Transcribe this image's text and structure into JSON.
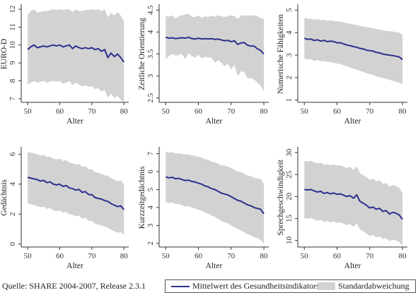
{
  "chart_data": [
    {
      "type": "line",
      "xlabel": "Alter",
      "ylabel": "EURO-D",
      "xlim": [
        48,
        81.5
      ],
      "ylim": [
        6.8,
        12.2
      ],
      "xticks": [
        50,
        60,
        70,
        80
      ],
      "yticks": [
        7,
        8,
        9,
        10,
        11,
        12
      ],
      "x": [
        50,
        51,
        52,
        53,
        54,
        55,
        56,
        57,
        58,
        59,
        60,
        61,
        62,
        63,
        64,
        65,
        66,
        67,
        68,
        69,
        70,
        71,
        72,
        73,
        74,
        75,
        76,
        77,
        78,
        79,
        80
      ],
      "series": [
        {
          "name": "Mittelwert des Gesundheitsindikators",
          "values": [
            9.75,
            9.9,
            10.0,
            9.85,
            9.9,
            9.95,
            9.9,
            9.95,
            10.0,
            9.95,
            10.0,
            9.9,
            9.95,
            10.0,
            9.8,
            9.95,
            9.85,
            9.8,
            9.85,
            9.8,
            9.85,
            9.75,
            9.8,
            9.65,
            9.75,
            9.3,
            9.55,
            9.35,
            9.5,
            9.3,
            9.05
          ]
        },
        {
          "name": "Standardabweichung",
          "lower": [
            7.8,
            7.9,
            8.0,
            7.9,
            7.95,
            8.0,
            7.9,
            7.95,
            8.0,
            7.95,
            8.0,
            7.85,
            7.9,
            8.0,
            7.75,
            7.9,
            7.8,
            7.7,
            7.75,
            7.65,
            7.7,
            7.55,
            7.6,
            7.4,
            7.5,
            7.05,
            7.3,
            7.05,
            7.15,
            6.95,
            6.8
          ],
          "upper": [
            11.7,
            11.9,
            12.0,
            11.8,
            11.85,
            11.9,
            11.9,
            11.95,
            12.0,
            11.95,
            12.0,
            11.95,
            12.0,
            12.0,
            11.85,
            12.0,
            11.9,
            11.9,
            11.95,
            11.95,
            12.0,
            11.95,
            12.0,
            11.9,
            12.0,
            11.55,
            11.8,
            11.65,
            11.85,
            11.65,
            11.3
          ]
        }
      ]
    },
    {
      "type": "line",
      "xlabel": "Alter",
      "ylabel": "Zeitliche Orientierung",
      "xlim": [
        48,
        81.5
      ],
      "ylim": [
        2.4,
        4.6
      ],
      "xticks": [
        50,
        60,
        70,
        80
      ],
      "yticks": [
        2.5,
        3,
        3.5,
        4,
        4.5
      ],
      "x": [
        50,
        51,
        52,
        53,
        54,
        55,
        56,
        57,
        58,
        59,
        60,
        61,
        62,
        63,
        64,
        65,
        66,
        67,
        68,
        69,
        70,
        71,
        72,
        73,
        74,
        75,
        76,
        77,
        78,
        79,
        80
      ],
      "series": [
        {
          "name": "Mittelwert des Gesundheitsindikators",
          "values": [
            3.88,
            3.86,
            3.87,
            3.85,
            3.86,
            3.87,
            3.86,
            3.88,
            3.85,
            3.84,
            3.86,
            3.84,
            3.85,
            3.84,
            3.85,
            3.83,
            3.84,
            3.82,
            3.8,
            3.81,
            3.78,
            3.8,
            3.72,
            3.75,
            3.76,
            3.7,
            3.68,
            3.68,
            3.62,
            3.58,
            3.5
          ]
        },
        {
          "name": "Standardabweichung",
          "lower": [
            3.38,
            3.45,
            3.5,
            3.46,
            3.48,
            3.5,
            3.38,
            3.52,
            3.45,
            3.42,
            3.48,
            3.4,
            3.44,
            3.42,
            3.42,
            3.3,
            3.36,
            3.3,
            3.22,
            3.28,
            3.15,
            3.25,
            3.0,
            3.1,
            3.1,
            2.95,
            2.95,
            2.92,
            2.85,
            2.78,
            2.65
          ],
          "upper": [
            4.36,
            4.35,
            4.38,
            4.3,
            4.36,
            4.38,
            4.4,
            4.42,
            4.35,
            4.34,
            4.38,
            4.32,
            4.36,
            4.34,
            4.37,
            4.35,
            4.38,
            4.36,
            4.34,
            4.36,
            4.38,
            4.36,
            4.3,
            4.37,
            4.38,
            4.37,
            4.38,
            4.38,
            4.36,
            4.32,
            4.3
          ]
        }
      ]
    },
    {
      "type": "line",
      "xlabel": "Alter",
      "ylabel": "Numerische Fähigkeiten",
      "xlim": [
        48,
        81.5
      ],
      "ylim": [
        0.9,
        5.2
      ],
      "xticks": [
        50,
        60,
        70,
        80
      ],
      "yticks": [
        1,
        2,
        3,
        4,
        5
      ],
      "x": [
        50,
        51,
        52,
        53,
        54,
        55,
        56,
        57,
        58,
        59,
        60,
        61,
        62,
        63,
        64,
        65,
        66,
        67,
        68,
        69,
        70,
        71,
        72,
        73,
        74,
        75,
        76,
        77,
        78,
        79,
        80
      ],
      "series": [
        {
          "name": "Mittelwert des Gesundheitsindikators",
          "values": [
            3.75,
            3.7,
            3.72,
            3.65,
            3.68,
            3.62,
            3.66,
            3.6,
            3.62,
            3.6,
            3.55,
            3.55,
            3.5,
            3.45,
            3.42,
            3.38,
            3.35,
            3.3,
            3.28,
            3.22,
            3.2,
            3.18,
            3.12,
            3.1,
            3.05,
            3.02,
            3.0,
            2.98,
            2.95,
            2.92,
            2.8
          ]
        },
        {
          "name": "Standardabweichung",
          "lower": [
            2.85,
            2.8,
            2.82,
            2.75,
            2.78,
            2.72,
            2.74,
            2.7,
            2.7,
            2.66,
            2.62,
            2.6,
            2.55,
            2.5,
            2.45,
            2.4,
            2.36,
            2.3,
            2.26,
            2.2,
            2.16,
            2.12,
            2.06,
            2.02,
            1.98,
            1.94,
            1.9,
            1.86,
            1.82,
            1.78,
            1.7
          ],
          "upper": [
            4.65,
            4.62,
            4.62,
            4.58,
            4.6,
            4.55,
            4.58,
            4.52,
            4.55,
            4.52,
            4.5,
            4.48,
            4.46,
            4.42,
            4.4,
            4.36,
            4.34,
            4.3,
            4.28,
            4.24,
            4.22,
            4.2,
            4.16,
            4.14,
            4.1,
            4.08,
            4.06,
            4.05,
            4.02,
            4.0,
            3.9
          ]
        }
      ]
    },
    {
      "type": "line",
      "xlabel": "Alter",
      "ylabel": "Gedächtnis",
      "xlim": [
        48,
        81.5
      ],
      "ylim": [
        -0.2,
        6.4
      ],
      "xticks": [
        50,
        60,
        70,
        80
      ],
      "yticks": [
        0,
        2,
        4,
        6
      ],
      "x": [
        50,
        51,
        52,
        53,
        54,
        55,
        56,
        57,
        58,
        59,
        60,
        61,
        62,
        63,
        64,
        65,
        66,
        67,
        68,
        69,
        70,
        71,
        72,
        73,
        74,
        75,
        76,
        77,
        78,
        79,
        80
      ],
      "series": [
        {
          "name": "Mittelwert des Gesundheitsindikators",
          "values": [
            4.45,
            4.4,
            4.35,
            4.3,
            4.2,
            4.25,
            4.1,
            4.15,
            4.0,
            3.95,
            4.0,
            3.85,
            3.9,
            3.75,
            3.7,
            3.6,
            3.65,
            3.45,
            3.5,
            3.3,
            3.3,
            3.1,
            3.05,
            3.0,
            2.9,
            2.85,
            2.7,
            2.6,
            2.5,
            2.55,
            2.3
          ]
        },
        {
          "name": "Standardabweichung",
          "lower": [
            2.7,
            2.65,
            2.6,
            2.55,
            2.45,
            2.5,
            2.35,
            2.4,
            2.25,
            2.2,
            2.25,
            2.1,
            2.15,
            2.0,
            1.95,
            1.85,
            1.9,
            1.7,
            1.75,
            1.55,
            1.55,
            1.35,
            1.3,
            1.25,
            1.15,
            1.1,
            0.95,
            0.85,
            0.75,
            0.8,
            0.6
          ],
          "upper": [
            6.15,
            6.1,
            6.05,
            6.0,
            5.9,
            5.95,
            5.8,
            5.85,
            5.7,
            5.65,
            5.7,
            5.55,
            5.6,
            5.45,
            5.4,
            5.3,
            5.35,
            5.15,
            5.2,
            5.0,
            5.0,
            4.8,
            4.75,
            4.7,
            4.6,
            4.55,
            4.4,
            4.3,
            4.2,
            4.25,
            4.0
          ]
        }
      ]
    },
    {
      "type": "line",
      "xlabel": "Alter",
      "ylabel": "Kurzzeitgedächtnis",
      "xlim": [
        48,
        81.5
      ],
      "ylim": [
        1.8,
        7.3
      ],
      "xticks": [
        50,
        60,
        70,
        80
      ],
      "yticks": [
        2,
        3,
        4,
        5,
        6,
        7
      ],
      "x": [
        50,
        51,
        52,
        53,
        54,
        55,
        56,
        57,
        58,
        59,
        60,
        61,
        62,
        63,
        64,
        65,
        66,
        67,
        68,
        69,
        70,
        71,
        72,
        73,
        74,
        75,
        76,
        77,
        78,
        79,
        80
      ],
      "series": [
        {
          "name": "Mittelwert des Gesundheitsindikators",
          "values": [
            5.7,
            5.65,
            5.68,
            5.6,
            5.62,
            5.55,
            5.5,
            5.52,
            5.45,
            5.42,
            5.35,
            5.3,
            5.2,
            5.15,
            5.05,
            5.0,
            4.9,
            4.8,
            4.75,
            4.7,
            4.6,
            4.5,
            4.4,
            4.35,
            4.25,
            4.15,
            4.1,
            4.0,
            3.95,
            3.9,
            3.65
          ]
        },
        {
          "name": "Standardabweichung",
          "lower": [
            4.3,
            4.25,
            4.28,
            4.2,
            4.2,
            4.12,
            4.05,
            4.08,
            4.0,
            3.95,
            3.88,
            3.82,
            3.72,
            3.65,
            3.55,
            3.48,
            3.36,
            3.25,
            3.18,
            3.12,
            3.0,
            2.9,
            2.8,
            2.72,
            2.62,
            2.52,
            2.45,
            2.35,
            2.3,
            2.2,
            2.0
          ],
          "upper": [
            7.1,
            7.05,
            7.08,
            7.0,
            7.02,
            6.98,
            6.95,
            6.96,
            6.9,
            6.88,
            6.82,
            6.78,
            6.68,
            6.65,
            6.55,
            6.52,
            6.44,
            6.35,
            6.32,
            6.28,
            6.2,
            6.1,
            6.0,
            5.98,
            5.88,
            5.78,
            5.75,
            5.65,
            5.6,
            5.6,
            5.3
          ]
        }
      ]
    },
    {
      "type": "line",
      "xlabel": "Alter",
      "ylabel": "Sprechgeschwindigkeit",
      "xlim": [
        48,
        81.5
      ],
      "ylim": [
        8.5,
        31
      ],
      "xticks": [
        50,
        60,
        70,
        80
      ],
      "yticks": [
        10,
        15,
        20,
        25,
        30
      ],
      "x": [
        50,
        51,
        52,
        53,
        54,
        55,
        56,
        57,
        58,
        59,
        60,
        61,
        62,
        63,
        64,
        65,
        66,
        67,
        68,
        69,
        70,
        71,
        72,
        73,
        74,
        75,
        76,
        77,
        78,
        79,
        80
      ],
      "series": [
        {
          "name": "Mittelwert des Gesundheitsindikators",
          "values": [
            21.6,
            21.5,
            21.6,
            21.3,
            21.0,
            21.2,
            20.7,
            20.9,
            20.6,
            20.8,
            20.5,
            20.6,
            20.3,
            20.0,
            20.2,
            19.6,
            20.4,
            18.9,
            18.5,
            18.0,
            17.4,
            17.6,
            17.1,
            17.3,
            16.6,
            16.8,
            16.0,
            16.4,
            16.2,
            15.8,
            14.8
          ]
        },
        {
          "name": "Standardabweichung",
          "lower": [
            15.1,
            15.0,
            15.1,
            14.8,
            14.5,
            14.7,
            14.2,
            14.4,
            14.1,
            14.3,
            14.0,
            14.1,
            13.8,
            13.5,
            13.7,
            13.1,
            13.9,
            12.5,
            12.1,
            11.6,
            11.0,
            11.2,
            10.7,
            10.9,
            10.3,
            10.5,
            9.8,
            10.2,
            10.0,
            9.6,
            8.8
          ],
          "upper": [
            28.1,
            28.0,
            28.1,
            27.8,
            27.5,
            27.7,
            27.2,
            27.4,
            27.1,
            27.3,
            27.0,
            27.1,
            26.8,
            26.5,
            26.7,
            26.1,
            26.9,
            25.3,
            24.9,
            24.4,
            23.8,
            24.0,
            23.5,
            23.7,
            22.9,
            23.1,
            22.2,
            22.6,
            22.4,
            22.0,
            20.8
          ]
        }
      ]
    }
  ],
  "source_note": "Quelle: SHARE 2004-2007, Release 2.3.1",
  "legend": {
    "mean_label": "Mittelwert des Gesundheitsindikators",
    "sd_label": "Standardabweichung"
  },
  "colors": {
    "mean_line": "#2c2f8c",
    "sd_band": "#d2d2d2"
  }
}
